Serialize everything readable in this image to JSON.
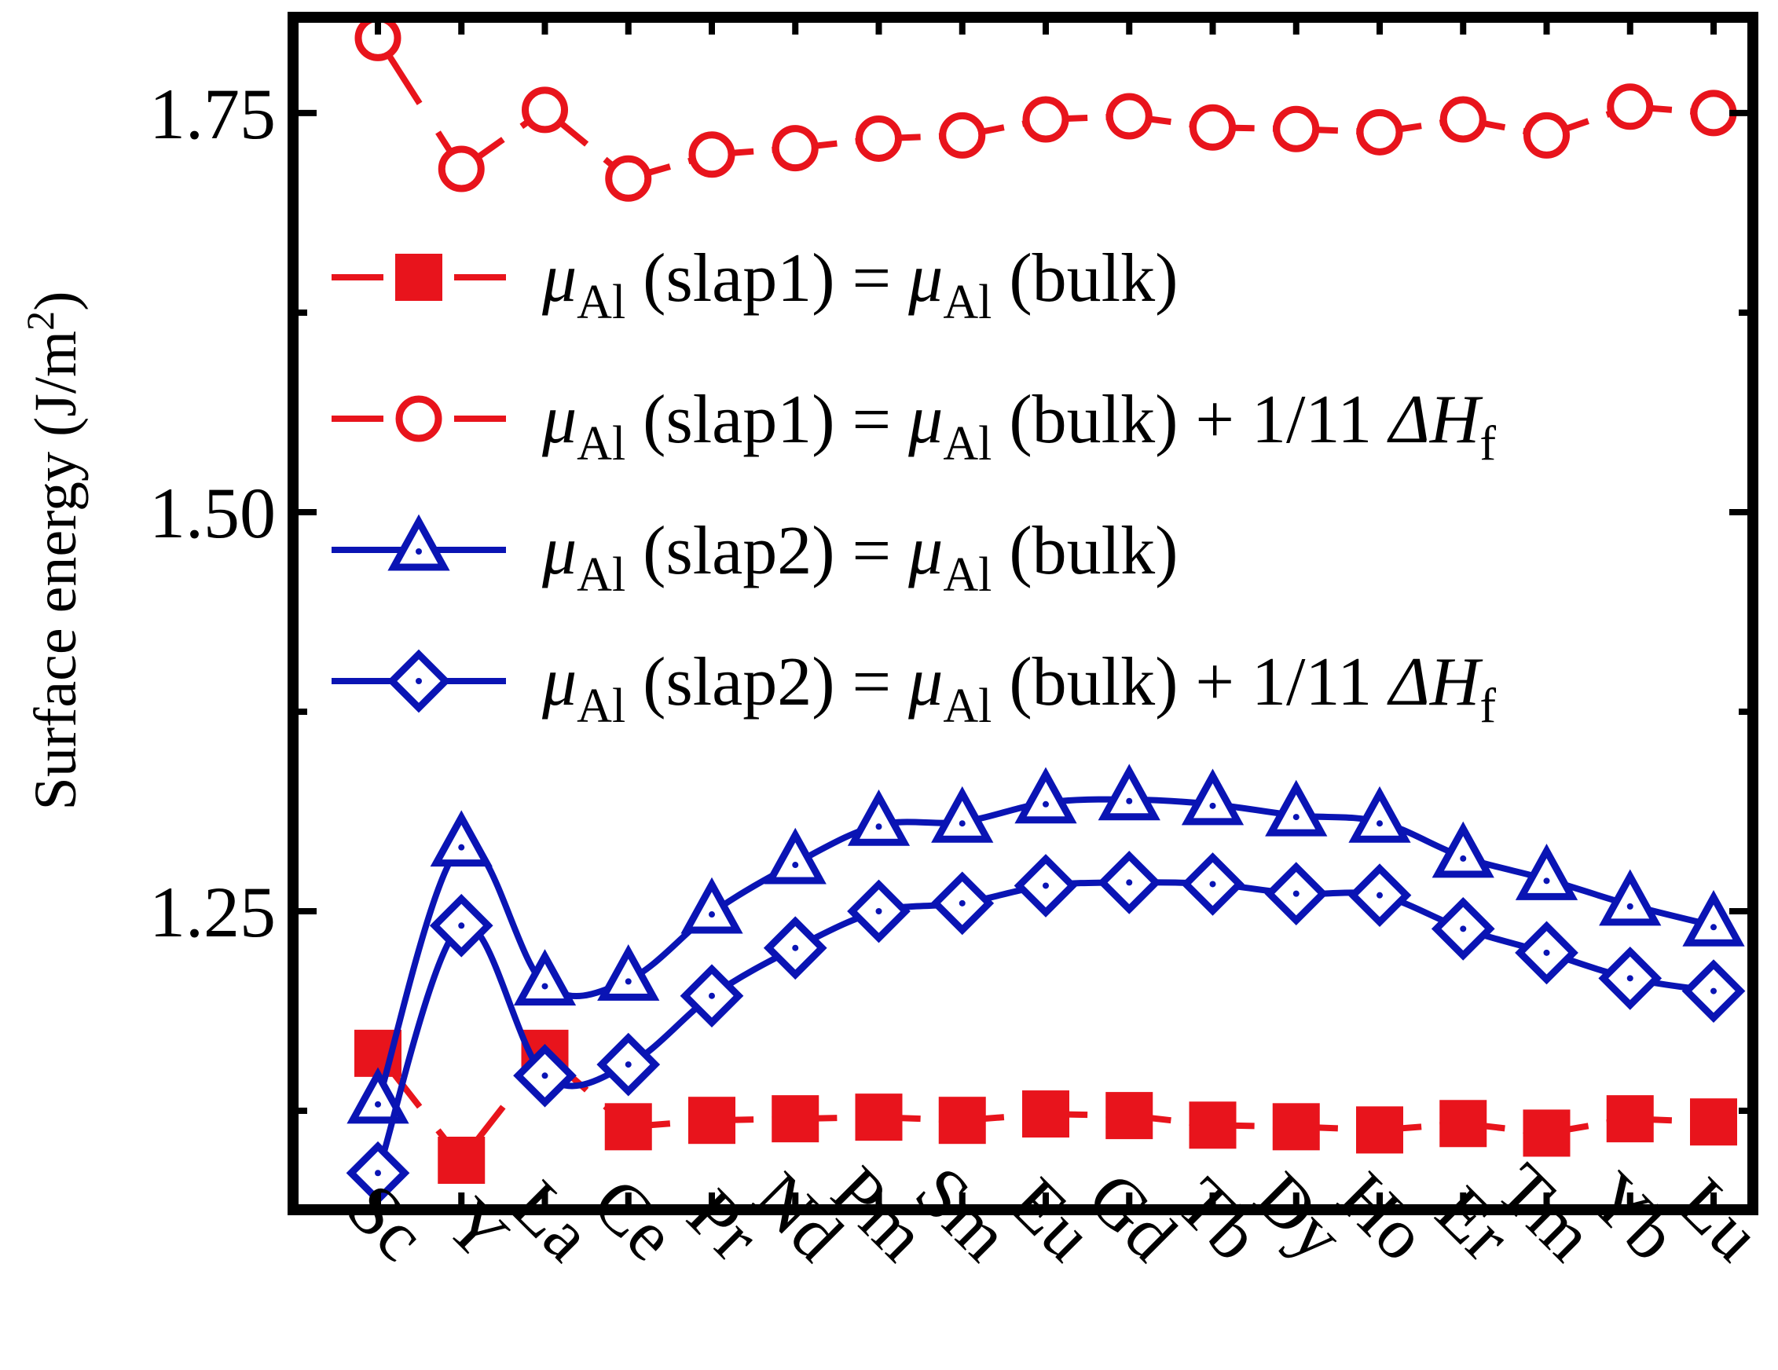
{
  "chart_data": {
    "type": "line",
    "title": "",
    "xlabel": "",
    "ylabel_main": "Surface energy (J/m",
    "ylabel_sup": "2",
    "ylabel_close": ")",
    "ylim": [
      1.063,
      1.81
    ],
    "yticks": [
      1.25,
      1.5,
      1.75
    ],
    "ytick_labels": [
      "1.25",
      "1.50",
      "1.75"
    ],
    "categories": [
      "Sc",
      "Y",
      "La",
      "Ce",
      "Pr",
      "Nd",
      "Pm",
      "Sm",
      "Eu",
      "Gd",
      "Tb",
      "Dy",
      "Ho",
      "Er",
      "Tm",
      "Yb",
      "Lu"
    ],
    "series": [
      {
        "name": "slap1-bulk",
        "color": "#e8141c",
        "marker": "filled-square",
        "line": "dashed",
        "smooth": false,
        "values": [
          1.161,
          1.094,
          1.161,
          1.115,
          1.119,
          1.12,
          1.121,
          1.119,
          1.123,
          1.122,
          1.116,
          1.115,
          1.113,
          1.117,
          1.111,
          1.12,
          1.118
        ]
      },
      {
        "name": "slap1-bulk-dH",
        "color": "#e8141c",
        "marker": "open-circle",
        "line": "dashed",
        "smooth": false,
        "values": [
          1.797,
          1.715,
          1.752,
          1.709,
          1.724,
          1.728,
          1.734,
          1.736,
          1.746,
          1.748,
          1.741,
          1.74,
          1.738,
          1.746,
          1.736,
          1.754,
          1.75
        ]
      },
      {
        "name": "slap2-bulk",
        "color": "#0a14b4",
        "marker": "open-triangle",
        "line": "solid",
        "smooth": true,
        "values": [
          1.13,
          1.291,
          1.204,
          1.207,
          1.249,
          1.28,
          1.304,
          1.306,
          1.318,
          1.32,
          1.317,
          1.31,
          1.306,
          1.284,
          1.27,
          1.254,
          1.241
        ]
      },
      {
        "name": "slap2-bulk-dH",
        "color": "#0a14b4",
        "marker": "open-diamond",
        "line": "solid",
        "smooth": true,
        "values": [
          1.086,
          1.241,
          1.147,
          1.154,
          1.197,
          1.227,
          1.25,
          1.255,
          1.266,
          1.268,
          1.267,
          1.261,
          1.26,
          1.239,
          1.224,
          1.208,
          1.2
        ]
      }
    ],
    "legend": {
      "position": "top-center",
      "entries": [
        {
          "series": "slap1-bulk",
          "mu": "μ",
          "sub1": "Al",
          "mid": " (slap1) = ",
          "sub2": "Al",
          "tail": " (bulk)",
          "extra": "",
          "italic": "",
          "sub3": ""
        },
        {
          "series": "slap1-bulk-dH",
          "mu": "μ",
          "sub1": "Al",
          "mid": " (slap1) = ",
          "sub2": "Al",
          "tail": " (bulk) + 1/11 ",
          "extra": "",
          "italic": "ΔH",
          "sub3": "f"
        },
        {
          "series": "slap2-bulk",
          "mu": "μ",
          "sub1": "Al",
          "mid": " (slap2) = ",
          "sub2": "Al",
          "tail": " (bulk)",
          "extra": "",
          "italic": "",
          "sub3": ""
        },
        {
          "series": "slap2-bulk-dH",
          "mu": "μ",
          "sub1": "Al",
          "mid": " (slap2) = ",
          "sub2": "Al",
          "tail": " (bulk) + 1/11 ",
          "extra": "",
          "italic": "ΔH",
          "sub3": "f"
        }
      ]
    }
  }
}
